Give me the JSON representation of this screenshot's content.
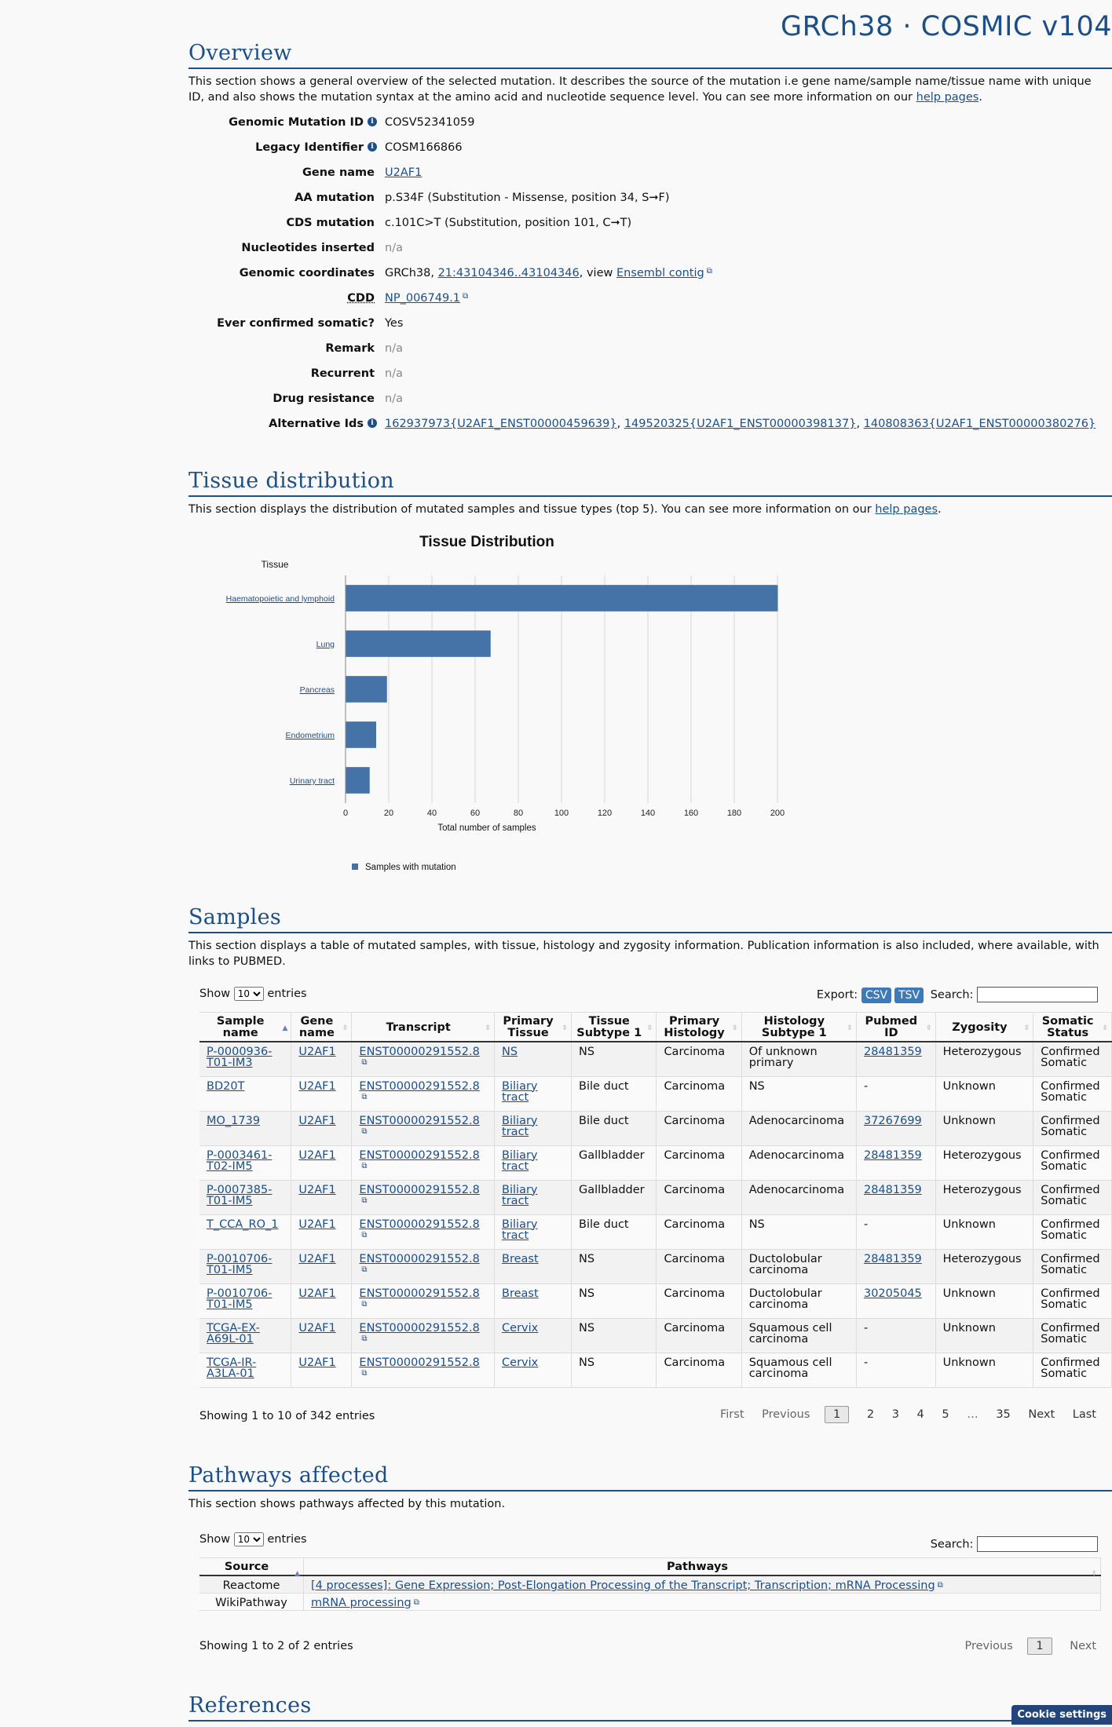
{
  "brand": "GRCh38 · COSMIC v104",
  "overview": {
    "title": "Overview",
    "intro_before": "This section shows a general overview of the selected mutation. It describes the source of the mutation i.e gene name/sample name/tissue name with unique ID, and also shows the mutation syntax at the amino acid and nucleotide sequence level. You can see more information on our ",
    "intro_link": "help pages",
    "intro_after": ".",
    "fields": {
      "genomic_mutation_id": {
        "label": "Genomic Mutation ID",
        "value": "COSV52341059"
      },
      "legacy_identifier": {
        "label": "Legacy Identifier",
        "value": "COSM166866"
      },
      "gene_name": {
        "label": "Gene name",
        "value": "U2AF1"
      },
      "aa_mutation": {
        "label": "AA mutation",
        "value": "p.S34F (Substitution - Missense, position 34, S➞F)"
      },
      "cds_mutation": {
        "label": "CDS mutation",
        "value": "c.101C>T (Substitution, position 101, C➞T)"
      },
      "nucleotides_inserted": {
        "label": "Nucleotides inserted",
        "value": "n/a"
      },
      "genomic_coordinates": {
        "label": "Genomic coordinates",
        "prefix": "GRCh38, ",
        "coord": "21:43104346..43104346",
        "mid": ", view ",
        "contig": "Ensembl contig"
      },
      "cdd": {
        "label": "CDD",
        "value": "NP_006749.1"
      },
      "ever_confirmed": {
        "label": "Ever confirmed somatic?",
        "value": "Yes"
      },
      "remark": {
        "label": "Remark",
        "value": "n/a"
      },
      "recurrent": {
        "label": "Recurrent",
        "value": "n/a"
      },
      "drug_resistance": {
        "label": "Drug resistance",
        "value": "n/a"
      },
      "alternative_ids": {
        "label": "Alternative Ids",
        "ids": [
          "162937973{U2AF1_ENST00000459639}",
          "149520325{U2AF1_ENST00000398137}",
          "140808363{U2AF1_ENST00000380276}"
        ],
        "sep": ", "
      }
    }
  },
  "tissue": {
    "title": "Tissue distribution",
    "intro_before": "This section displays the distribution of mutated samples and tissue types (top 5). You can see more information on our ",
    "intro_link": "help pages",
    "intro_after": "."
  },
  "chart_data": {
    "type": "bar",
    "orientation": "horizontal",
    "title": "Tissue Distribution",
    "ylabel": "Tissue",
    "xlabel": "Total number of samples",
    "categories": [
      "Haematopoietic and lymphoid",
      "Lung",
      "Pancreas",
      "Endometrium",
      "Urinary tract"
    ],
    "values": [
      200,
      67,
      19,
      14,
      11
    ],
    "xlim": [
      0,
      200
    ],
    "xticks": [
      "0",
      "20",
      "40",
      "60",
      "80",
      "100",
      "120",
      "140",
      "160",
      "180",
      "200"
    ],
    "grid": true,
    "series": [
      {
        "name": "Samples with mutation",
        "color": "#4572a7"
      }
    ],
    "legend_position": "bottom-left"
  },
  "samples": {
    "title": "Samples",
    "intro": "This section displays a table of mutated samples, with tissue, histology and zygosity information. Publication information is also included, where available, with links to PUBMED.",
    "show_label": "Show",
    "entries_label": "entries",
    "page_size": "10",
    "export_label": "Export:",
    "csv": "CSV",
    "tsv": "TSV",
    "search_label": "Search:",
    "columns": [
      "Sample name",
      "Gene name",
      "Transcript",
      "Primary Tissue",
      "Tissue Subtype 1",
      "Primary Histology",
      "Histology Subtype 1",
      "Pubmed ID",
      "Zygosity",
      "Somatic Status"
    ],
    "rows": [
      [
        "P-0000936-T01-IM3",
        "U2AF1",
        "ENST00000291552.8",
        "NS",
        "NS",
        "Carcinoma",
        "Of unknown primary",
        "28481359",
        "Heterozygous",
        "Confirmed Somatic"
      ],
      [
        "BD20T",
        "U2AF1",
        "ENST00000291552.8",
        "Biliary tract",
        "Bile duct",
        "Carcinoma",
        "NS",
        "-",
        "Unknown",
        "Confirmed Somatic"
      ],
      [
        "MO_1739",
        "U2AF1",
        "ENST00000291552.8",
        "Biliary tract",
        "Bile duct",
        "Carcinoma",
        "Adenocarcinoma",
        "37267699",
        "Unknown",
        "Confirmed Somatic"
      ],
      [
        "P-0003461-T02-IM5",
        "U2AF1",
        "ENST00000291552.8",
        "Biliary tract",
        "Gallbladder",
        "Carcinoma",
        "Adenocarcinoma",
        "28481359",
        "Heterozygous",
        "Confirmed Somatic"
      ],
      [
        "P-0007385-T01-IM5",
        "U2AF1",
        "ENST00000291552.8",
        "Biliary tract",
        "Gallbladder",
        "Carcinoma",
        "Adenocarcinoma",
        "28481359",
        "Heterozygous",
        "Confirmed Somatic"
      ],
      [
        "T_CCA_RO_1",
        "U2AF1",
        "ENST00000291552.8",
        "Biliary tract",
        "Bile duct",
        "Carcinoma",
        "NS",
        "-",
        "Unknown",
        "Confirmed Somatic"
      ],
      [
        "P-0010706-T01-IM5",
        "U2AF1",
        "ENST00000291552.8",
        "Breast",
        "NS",
        "Carcinoma",
        "Ductolobular carcinoma",
        "28481359",
        "Heterozygous",
        "Confirmed Somatic"
      ],
      [
        "P-0010706-T01-IM5",
        "U2AF1",
        "ENST00000291552.8",
        "Breast",
        "NS",
        "Carcinoma",
        "Ductolobular carcinoma",
        "30205045",
        "Unknown",
        "Confirmed Somatic"
      ],
      [
        "TCGA-EX-A69L-01",
        "U2AF1",
        "ENST00000291552.8",
        "Cervix",
        "NS",
        "Carcinoma",
        "Squamous cell carcinoma",
        "-",
        "Unknown",
        "Confirmed Somatic"
      ],
      [
        "TCGA-IR-A3LA-01",
        "U2AF1",
        "ENST00000291552.8",
        "Cervix",
        "NS",
        "Carcinoma",
        "Squamous cell carcinoma",
        "-",
        "Unknown",
        "Confirmed Somatic"
      ]
    ],
    "info": "Showing 1 to 10 of 342 entries",
    "pager": {
      "first": "First",
      "previous": "Previous",
      "pages": [
        "1",
        "2",
        "3",
        "4",
        "5",
        "…",
        "35"
      ],
      "next": "Next",
      "last": "Last"
    }
  },
  "pathways": {
    "title": "Pathways affected",
    "intro": "This section shows pathways affected by this mutation.",
    "show_label": "Show",
    "entries_label": "entries",
    "page_size": "10",
    "search_label": "Search:",
    "columns": [
      "Source",
      "Pathways"
    ],
    "rows": [
      [
        "Reactome",
        "[4 processes]: Gene Expression; Post-Elongation Processing of the Transcript; Transcription; mRNA Processing"
      ],
      [
        "WikiPathway",
        "mRNA processing"
      ]
    ],
    "info": "Showing 1 to 2 of 2 entries",
    "pager": {
      "previous": "Previous",
      "page": "1",
      "next": "Next"
    }
  },
  "references": {
    "title": "References"
  },
  "cookie": "Cookie settings"
}
